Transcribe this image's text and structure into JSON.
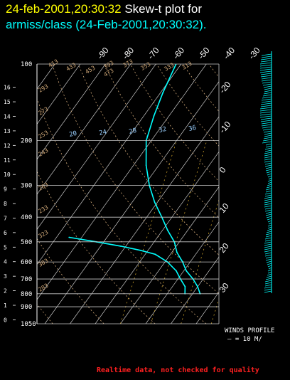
{
  "header": {
    "timestamp": "24-feb-2001,20:30:32",
    "title_suffix": "Skew-t plot for",
    "subtitle": "armiss/class (24-Feb-2001,20:30:32)."
  },
  "winds": {
    "label": "WINDS PROFILE",
    "scale": "— = 10 M/"
  },
  "footer": "Realtime data, not checked for quality",
  "colors": {
    "profile": "#00ffff",
    "grid": "#c8c8c8",
    "mixing_ratio": "#e8b830",
    "dry_adiabat": "#d0a878",
    "header_yellow": "#ffff00",
    "footer_red": "#ff2020"
  },
  "chart_data": {
    "type": "line",
    "title": "Skew-t plot",
    "pressure_levels": [
      {
        "label": "100",
        "p": 100
      },
      {
        "label": "200",
        "p": 200
      },
      {
        "label": "300",
        "p": 300
      },
      {
        "label": "400",
        "p": 400
      },
      {
        "label": "500",
        "p": 500
      },
      {
        "label": "600",
        "p": 600
      },
      {
        "label": "700",
        "p": 700
      },
      {
        "label": "800",
        "p": 800
      },
      {
        "label": "900",
        "p": 900
      },
      {
        "label": "1050",
        "p": 1050
      }
    ],
    "height_km_ticks": [
      "0",
      "1",
      "2",
      "3",
      "4",
      "5",
      "6",
      "7",
      "8",
      "9",
      "10",
      "11",
      "12",
      "13",
      "14",
      "15",
      "16"
    ],
    "temperature_top_ticks": [
      -90,
      -80,
      -70,
      -60,
      -50,
      -40,
      -30
    ],
    "temperature_right_ticks": [
      -20,
      -10,
      0,
      10,
      20,
      30
    ],
    "mixing_ratio_labels": [
      "20",
      "24",
      "28",
      "32",
      "36"
    ],
    "theta_labels": [
      "413",
      "433",
      "453",
      "473",
      "393",
      "373",
      "353",
      "333",
      "313",
      "293",
      "273",
      "253",
      "243",
      "263",
      "233",
      "323",
      "303",
      "283"
    ],
    "series": [
      {
        "name": "temperature",
        "points": [
          [
            100,
            -62
          ],
          [
            130,
            -59
          ],
          [
            160,
            -56
          ],
          [
            200,
            -52
          ],
          [
            250,
            -45
          ],
          [
            300,
            -38
          ],
          [
            350,
            -31
          ],
          [
            400,
            -24
          ],
          [
            450,
            -18
          ],
          [
            500,
            -12
          ],
          [
            550,
            -8
          ],
          [
            600,
            -3
          ],
          [
            650,
            1
          ],
          [
            700,
            6
          ],
          [
            750,
            10
          ],
          [
            800,
            13
          ]
        ]
      },
      {
        "name": "dewpoint",
        "points": [
          [
            480,
            -55
          ],
          [
            500,
            -43
          ],
          [
            520,
            -32
          ],
          [
            540,
            -23
          ],
          [
            560,
            -16
          ],
          [
            600,
            -9
          ],
          [
            650,
            -3
          ],
          [
            700,
            1
          ],
          [
            750,
            5
          ],
          [
            800,
            7
          ]
        ]
      }
    ],
    "wind_profile_scale": "10 m/s"
  }
}
